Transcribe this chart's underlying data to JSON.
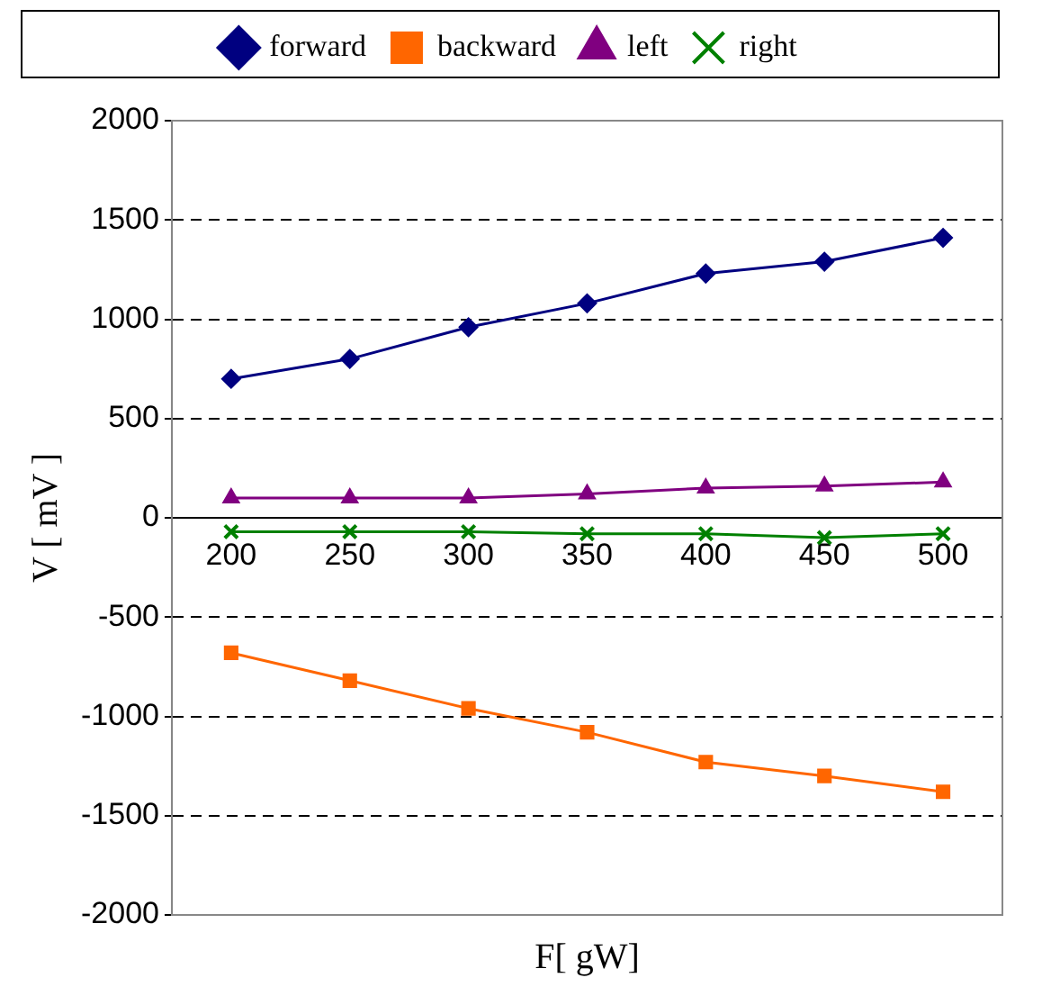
{
  "chart_data": {
    "type": "line",
    "xlabel": "F[ gW]",
    "ylabel": "V [ mV ]",
    "categories": [
      "200",
      "250",
      "300",
      "350",
      "400",
      "450",
      "500"
    ],
    "series": [
      {
        "name": "forward",
        "color": "#000080",
        "marker": "diamond",
        "values": [
          700,
          800,
          960,
          1080,
          1230,
          1290,
          1410
        ]
      },
      {
        "name": "backward",
        "color": "#ff6600",
        "marker": "square",
        "values": [
          -680,
          -820,
          -960,
          -1080,
          -1230,
          -1300,
          -1380
        ]
      },
      {
        "name": "left",
        "color": "#800080",
        "marker": "triangle",
        "values": [
          100,
          100,
          100,
          120,
          150,
          160,
          180
        ]
      },
      {
        "name": "right",
        "color": "#008000",
        "marker": "cross",
        "values": [
          -70,
          -70,
          -70,
          -80,
          -80,
          -100,
          -80
        ]
      }
    ],
    "ylim": [
      -2000,
      2000
    ],
    "yticks": [
      -2000,
      -1500,
      -1000,
      -500,
      0,
      500,
      1000,
      1500,
      2000
    ],
    "grid": "y",
    "legend": "top",
    "line_style": "solid"
  }
}
